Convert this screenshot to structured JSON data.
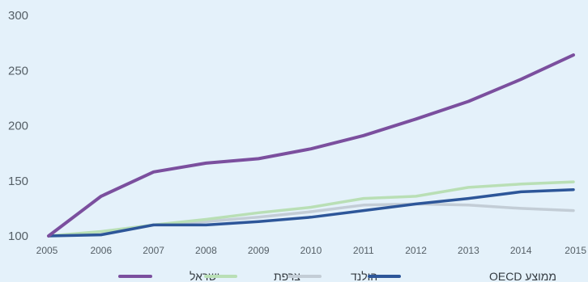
{
  "chart_data": {
    "type": "line",
    "title": "",
    "xlabel": "",
    "ylabel": "",
    "x": [
      "2005",
      "2006",
      "2007",
      "2008",
      "2009",
      "2010",
      "2011",
      "2012",
      "2013",
      "2014",
      "2015"
    ],
    "ylim": [
      100,
      300
    ],
    "yticks": [
      "100",
      "150",
      "200",
      "250",
      "300"
    ],
    "grid": false,
    "legend_position": "bottom",
    "series": [
      {
        "name": "ישראל",
        "color": "#7b4f9e",
        "values": [
          100,
          136,
          158,
          166,
          170,
          179,
          191,
          206,
          222,
          242,
          264
        ]
      },
      {
        "name": "צרפת",
        "color": "#b9dfb5",
        "values": [
          100,
          104,
          110,
          115,
          121,
          126,
          134,
          136,
          144,
          147,
          149
        ]
      },
      {
        "name": "הולנד",
        "color": "#c3cdd6",
        "values": [
          100,
          103,
          110,
          113,
          117,
          122,
          128,
          129,
          128,
          125,
          123
        ]
      },
      {
        "name": "ממוצע OECD",
        "color": "#2d5699",
        "values": [
          100,
          101,
          110,
          110,
          113,
          117,
          123,
          129,
          134,
          140,
          142
        ]
      }
    ]
  }
}
